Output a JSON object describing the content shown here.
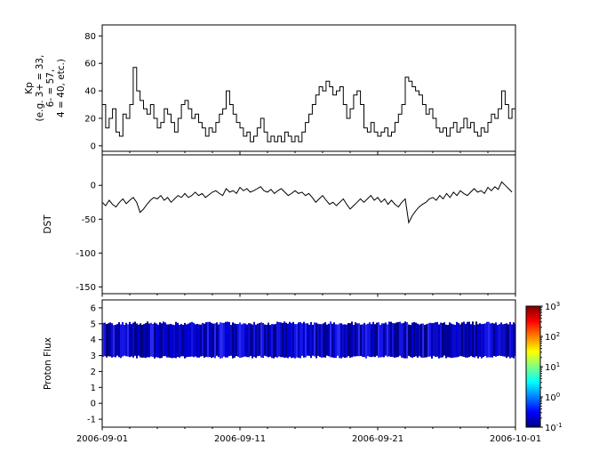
{
  "figure": {
    "background": "#ffffff",
    "frame_color": "#000000"
  },
  "xaxis": {
    "range_days": [
      0,
      30
    ],
    "ticks": [
      {
        "day": 0,
        "label": "2006-09-01"
      },
      {
        "day": 10,
        "label": "2006-09-11"
      },
      {
        "day": 20,
        "label": "2006-09-21"
      },
      {
        "day": 30,
        "label": "2006-10-01"
      }
    ],
    "minor_tick_days": [
      2,
      4,
      6,
      8,
      12,
      14,
      16,
      18,
      22,
      24,
      26,
      28
    ]
  },
  "chart_data": [
    {
      "id": "kp",
      "type": "line",
      "line_mode": "step",
      "ylabel_lines": [
        "Kp",
        "(e.g. 3+ = 33,",
        "6- = 57,",
        "4 = 40, etc.)"
      ],
      "ylim": [
        -4,
        88
      ],
      "yticks": [
        0,
        20,
        40,
        60,
        80
      ],
      "color": "#000000",
      "sample_interval_hours": 6,
      "values": [
        30,
        13,
        20,
        27,
        10,
        7,
        23,
        20,
        30,
        57,
        40,
        33,
        27,
        23,
        30,
        20,
        13,
        17,
        27,
        23,
        17,
        10,
        20,
        30,
        33,
        27,
        20,
        23,
        17,
        13,
        7,
        13,
        10,
        17,
        23,
        27,
        40,
        30,
        23,
        17,
        13,
        7,
        10,
        3,
        7,
        13,
        20,
        10,
        3,
        7,
        3,
        7,
        3,
        10,
        7,
        3,
        7,
        3,
        10,
        17,
        23,
        30,
        37,
        43,
        40,
        47,
        43,
        37,
        40,
        43,
        30,
        20,
        27,
        37,
        40,
        30,
        13,
        10,
        17,
        10,
        7,
        10,
        13,
        7,
        10,
        17,
        23,
        30,
        50,
        47,
        43,
        40,
        37,
        30,
        23,
        27,
        20,
        13,
        10,
        13,
        7,
        13,
        17,
        10,
        13,
        20,
        13,
        17,
        10,
        7,
        13,
        10,
        17,
        23,
        20,
        27,
        40,
        30,
        20,
        27
      ]
    },
    {
      "id": "dst",
      "type": "line",
      "line_mode": "linear",
      "ylabel": "DST",
      "ylim": [
        -160,
        45
      ],
      "yticks": [
        0,
        -50,
        -100,
        -150
      ],
      "color": "#000000",
      "sample_interval_hours": 6,
      "values": [
        -25,
        -30,
        -22,
        -28,
        -32,
        -25,
        -20,
        -27,
        -22,
        -18,
        -25,
        -40,
        -35,
        -28,
        -22,
        -18,
        -20,
        -15,
        -22,
        -18,
        -25,
        -20,
        -15,
        -18,
        -12,
        -18,
        -15,
        -10,
        -15,
        -12,
        -18,
        -14,
        -10,
        -8,
        -12,
        -15,
        -5,
        -10,
        -8,
        -12,
        -3,
        -8,
        -5,
        -10,
        -8,
        -5,
        -2,
        -8,
        -10,
        -6,
        -12,
        -8,
        -5,
        -10,
        -15,
        -12,
        -8,
        -12,
        -10,
        -15,
        -12,
        -18,
        -25,
        -20,
        -15,
        -22,
        -28,
        -25,
        -30,
        -25,
        -20,
        -28,
        -35,
        -30,
        -25,
        -20,
        -25,
        -20,
        -15,
        -22,
        -18,
        -25,
        -20,
        -28,
        -22,
        -28,
        -32,
        -25,
        -20,
        -55,
        -45,
        -38,
        -32,
        -28,
        -25,
        -20,
        -18,
        -22,
        -15,
        -20,
        -12,
        -18,
        -10,
        -15,
        -8,
        -12,
        -15,
        -10,
        -5,
        -10,
        -8,
        -12,
        -3,
        -8,
        -2,
        -6,
        5,
        0,
        -5,
        -10
      ]
    },
    {
      "id": "proton_flux",
      "type": "heatmap",
      "ylabel": "Proton Flux",
      "ylim": [
        -1.5,
        6.5
      ],
      "yticks": [
        -1,
        0,
        1,
        2,
        3,
        4,
        5,
        6
      ],
      "band": {
        "y_min": 3,
        "y_max": 5,
        "shades": [
          "#000099",
          "#0000bb",
          "#0000d5",
          "#1414e6",
          "#0a0ac8",
          "#2929f5",
          "#000084"
        ]
      },
      "colorbar": {
        "tick_exponents": [
          3,
          2,
          1,
          0,
          -1
        ],
        "gradient_stops": [
          {
            "offset": 0,
            "color": "#000080"
          },
          {
            "offset": 0.125,
            "color": "#0000ff"
          },
          {
            "offset": 0.375,
            "color": "#00ffff"
          },
          {
            "offset": 0.625,
            "color": "#ffff00"
          },
          {
            "offset": 0.875,
            "color": "#ff0000"
          },
          {
            "offset": 1,
            "color": "#800000"
          }
        ]
      }
    }
  ]
}
